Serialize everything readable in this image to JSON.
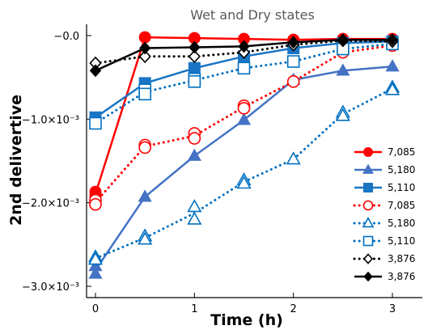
{
  "chart_data": {
    "type": "line",
    "title": "Wet and Dry states",
    "xlabel": "Time (h)",
    "ylabel": "2nd delivertive",
    "xlim": [
      -0.1,
      3.35
    ],
    "ylim": [
      -0.003,
      0.00015
    ],
    "xticks": [
      0,
      1,
      2,
      3
    ],
    "xtick_labels": [
      "0",
      "1",
      "2",
      "3"
    ],
    "yticks": [
      0,
      -0.001,
      -0.002,
      -0.003
    ],
    "ytick_labels": [
      "−0.0",
      "−1.0×10⁻³",
      "−2.0×10⁻³",
      "−3.0×10⁻³"
    ],
    "legend_position": "right",
    "series": [
      {
        "name": "7,085",
        "color": "#ff0000",
        "dash": "solid",
        "marker": "circle",
        "filled": true,
        "x": [
          0,
          0,
          0.5,
          1,
          1.5,
          2,
          2.5,
          3
        ],
        "y": [
          -0.00187,
          -0.00192,
          -2e-05,
          -3e-05,
          -4e-05,
          -5e-05,
          -4e-05,
          -4e-05
        ]
      },
      {
        "name": "5,180",
        "color": "#4472c4",
        "dash": "solid",
        "marker": "triangle",
        "filled": true,
        "x": [
          0,
          0,
          0.5,
          1,
          1.5,
          2,
          2.5,
          3
        ],
        "y": [
          -0.00276,
          -0.00285,
          -0.00193,
          -0.00144,
          -0.00101,
          -0.00053,
          -0.00042,
          -0.00037
        ]
      },
      {
        "name": "5,110",
        "color": "#1a75c5",
        "dash": "solid",
        "marker": "square",
        "filled": true,
        "x": [
          0,
          0.5,
          1,
          1.5,
          2,
          2.5,
          3
        ],
        "y": [
          -0.00098,
          -0.00057,
          -0.00039,
          -0.00025,
          -0.00015,
          -9e-05,
          -7e-05
        ]
      },
      {
        "name": "7,085",
        "color": "#ff0000",
        "dash": "dot",
        "marker": "circle",
        "filled": false,
        "x": [
          0,
          0,
          0.5,
          0.5,
          1,
          1,
          1.5,
          1.5,
          2,
          2.5,
          3
        ],
        "y": [
          -0.00197,
          -0.00202,
          -0.00131,
          -0.00134,
          -0.00117,
          -0.00123,
          -0.00084,
          -0.00087,
          -0.00055,
          -0.0002,
          -0.00012
        ]
      },
      {
        "name": "5,180",
        "color": "#0070c0",
        "dash": "dot",
        "marker": "triangle",
        "filled": false,
        "x": [
          0,
          0,
          0.5,
          0.5,
          1,
          1,
          1.5,
          1.5,
          2,
          2.5,
          2.5,
          3,
          3
        ],
        "y": [
          -0.00265,
          -0.00268,
          -0.0024,
          -0.00244,
          -0.00205,
          -0.0022,
          -0.00173,
          -0.00177,
          -0.00148,
          -0.00092,
          -0.00096,
          -0.00062,
          -0.00065
        ]
      },
      {
        "name": "5,110",
        "color": "#0070c0",
        "dash": "dot",
        "marker": "square",
        "filled": false,
        "x": [
          0,
          0.5,
          0.5,
          1,
          1,
          1.5,
          2,
          2.5,
          3
        ],
        "y": [
          -0.00105,
          -0.00065,
          -0.0007,
          -0.00052,
          -0.00055,
          -0.00039,
          -0.00031,
          -0.00016,
          -0.0001
        ]
      },
      {
        "name": "3,876",
        "color": "#000000",
        "dash": "dot",
        "marker": "diamond",
        "filled": false,
        "x": [
          0,
          0.5,
          1,
          1.5,
          2,
          2.5,
          3
        ],
        "y": [
          -0.00033,
          -0.00025,
          -0.00025,
          -0.0002,
          -0.00011,
          -6e-05,
          -7e-05
        ]
      },
      {
        "name": "3,876",
        "color": "#000000",
        "dash": "solid",
        "marker": "diamond",
        "filled": true,
        "x": [
          0,
          0.5,
          1,
          1.5,
          2,
          2.5,
          3
        ],
        "y": [
          -0.00042,
          -0.00015,
          -0.00014,
          -0.00013,
          -8e-05,
          -5e-05,
          -5e-05
        ]
      }
    ]
  }
}
